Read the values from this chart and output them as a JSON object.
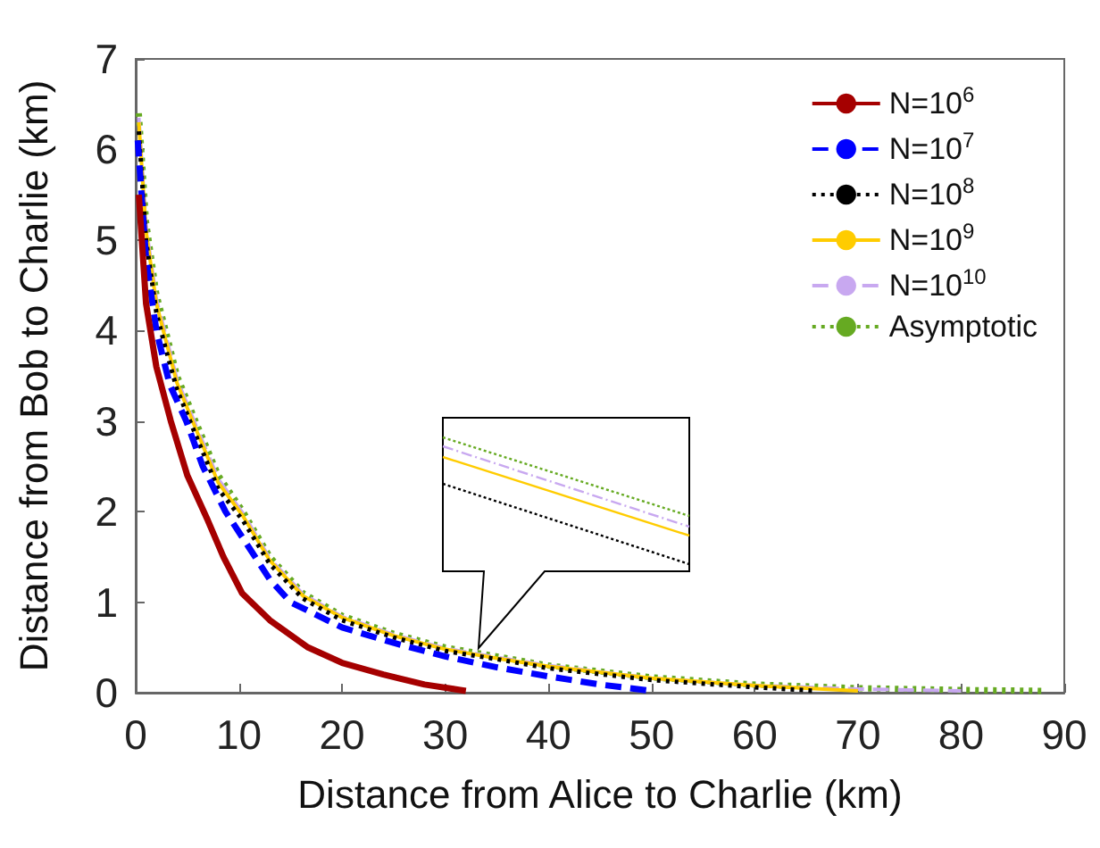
{
  "chart_data": {
    "type": "line",
    "xlabel": "Distance from Alice to Charlie (km)",
    "ylabel": "Distance from Bob to Charlie (km)",
    "xlim": [
      0,
      90
    ],
    "xticks": [
      0,
      10,
      20,
      30,
      40,
      50,
      60,
      70,
      80,
      90
    ],
    "ylim": [
      0,
      7
    ],
    "yticks": [
      0,
      1,
      2,
      3,
      4,
      5,
      6,
      7
    ],
    "grid": false,
    "legend": "top right",
    "marker": "none",
    "series": [
      {
        "name": "N=10$^{6}$",
        "color": "#a50000",
        "line_style": "solid",
        "x": [
          0.3,
          1,
          2,
          3.4,
          5,
          7,
          8.5,
          10.3,
          13,
          16.7,
          20,
          24,
          28,
          32
        ],
        "values": [
          5.5,
          4.3,
          3.6,
          3,
          2.4,
          1.9,
          1.5,
          1.1,
          0.8,
          0.5,
          0.33,
          0.2,
          0.09,
          0.02
        ]
      },
      {
        "name": "N=10$^{7}$",
        "color": "#0000ff",
        "line_style": "dashed",
        "x": [
          0.2,
          1,
          2,
          3.3,
          4.9,
          6.5,
          8.7,
          11,
          13,
          15,
          20,
          25,
          30,
          35,
          40,
          45,
          50
        ],
        "values": [
          6.1,
          4.8,
          4,
          3.4,
          3,
          2.5,
          2,
          1.6,
          1.25,
          1,
          0.72,
          0.55,
          0.4,
          0.28,
          0.18,
          0.09,
          0.02
        ]
      },
      {
        "name": "N=10$^{8}$",
        "color": "#000000",
        "line_style": "dotted",
        "x": [
          0.3,
          1,
          2,
          2.9,
          4,
          5.8,
          8,
          10.4,
          13,
          16.2,
          20,
          25,
          30,
          35,
          40,
          50,
          60,
          66
        ],
        "values": [
          6.2,
          5,
          4.2,
          3.8,
          3.35,
          2.85,
          2.25,
          1.9,
          1.42,
          1.04,
          0.8,
          0.61,
          0.46,
          0.37,
          0.27,
          0.14,
          0.06,
          0.02
        ]
      },
      {
        "name": "N=10$^{9}$",
        "color": "#ffcc00",
        "line_style": "solid",
        "x": [
          0.3,
          1,
          2,
          2.9,
          4,
          5.8,
          8,
          10.4,
          13,
          16.2,
          20,
          25,
          30,
          35,
          40,
          50,
          60,
          70
        ],
        "values": [
          6.3,
          5.1,
          4.3,
          3.9,
          3.42,
          2.92,
          2.32,
          1.95,
          1.46,
          1.07,
          0.83,
          0.63,
          0.48,
          0.38,
          0.29,
          0.16,
          0.08,
          0.02
        ]
      },
      {
        "name": "N=10$^{10}$",
        "color": "#c8a8f0",
        "line_style": "dashed",
        "x": [
          0.3,
          1,
          2,
          2.9,
          4,
          5.8,
          8,
          10.4,
          13,
          16.2,
          20,
          25,
          30,
          35,
          40,
          50,
          60,
          70,
          80
        ],
        "values": [
          6.35,
          5.15,
          4.35,
          3.95,
          3.46,
          2.96,
          2.36,
          1.98,
          1.48,
          1.09,
          0.84,
          0.64,
          0.49,
          0.39,
          0.3,
          0.16,
          0.08,
          0.04,
          0.02
        ]
      },
      {
        "name": "Asymptotic",
        "color": "#66aa22",
        "line_style": "dotted",
        "x": [
          0.3,
          1,
          2,
          2.9,
          4,
          5.8,
          8,
          10.4,
          13,
          16.2,
          20,
          25,
          30,
          35,
          40,
          50,
          60,
          70,
          80,
          88
        ],
        "values": [
          6.4,
          5.2,
          4.4,
          4,
          3.5,
          3,
          2.4,
          2,
          1.5,
          1.1,
          0.85,
          0.65,
          0.5,
          0.4,
          0.3,
          0.17,
          0.09,
          0.05,
          0.03,
          0.02
        ]
      }
    ]
  }
}
